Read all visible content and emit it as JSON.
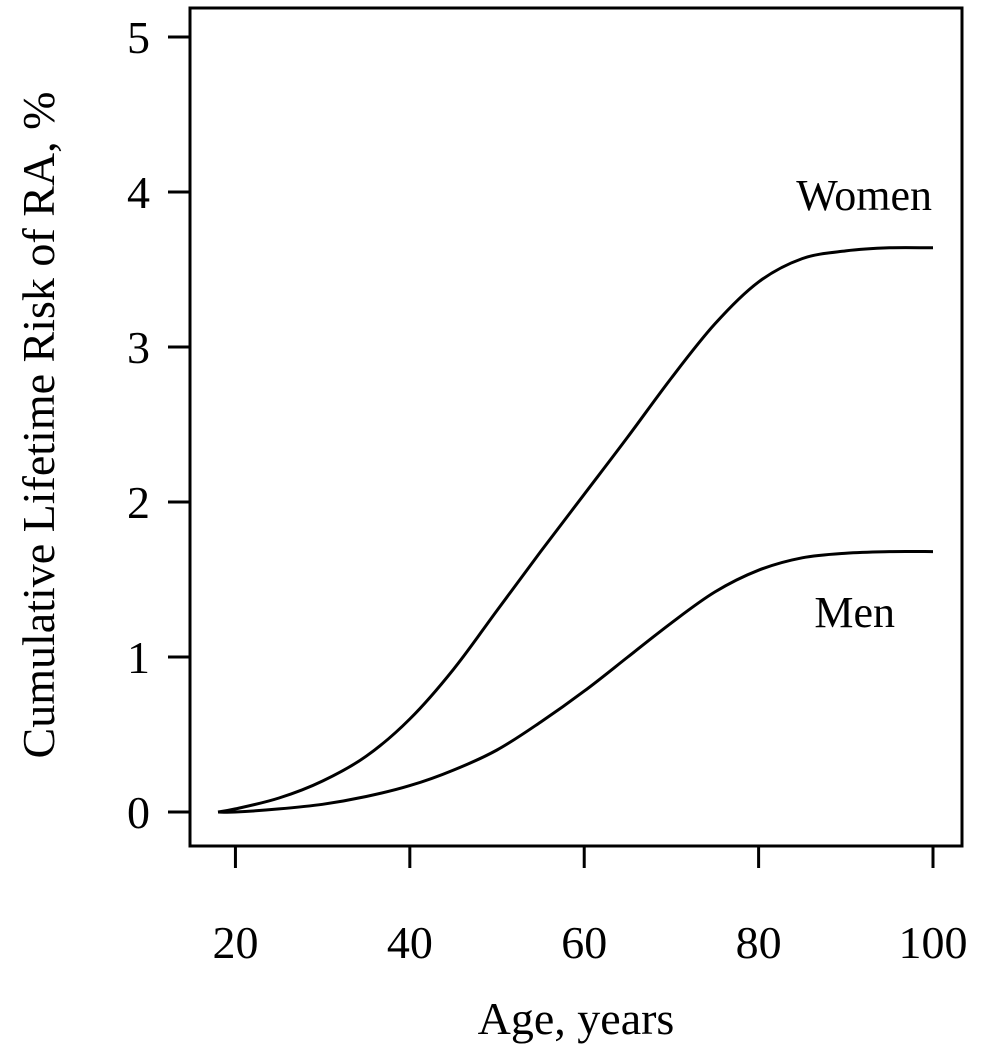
{
  "chart_data": {
    "type": "line",
    "title": "",
    "xlabel": "Age, years",
    "ylabel": "Cumulative Lifetime Risk of RA, %",
    "xlim": [
      18,
      100
    ],
    "ylim": [
      0,
      5
    ],
    "xticks": [
      20,
      40,
      60,
      80,
      100
    ],
    "yticks": [
      0,
      1,
      2,
      3,
      4,
      5
    ],
    "grid": false,
    "legend": "none",
    "x": [
      18,
      20,
      25,
      30,
      35,
      40,
      45,
      50,
      55,
      60,
      65,
      70,
      75,
      80,
      85,
      90,
      95,
      100
    ],
    "series": [
      {
        "name": "Women",
        "values": [
          0.0,
          0.02,
          0.09,
          0.2,
          0.36,
          0.6,
          0.92,
          1.3,
          1.68,
          2.05,
          2.42,
          2.8,
          3.15,
          3.42,
          3.57,
          3.62,
          3.64,
          3.64
        ]
      },
      {
        "name": "Men",
        "values": [
          0.0,
          0.0,
          0.02,
          0.05,
          0.1,
          0.17,
          0.27,
          0.4,
          0.58,
          0.78,
          1.0,
          1.22,
          1.42,
          1.56,
          1.64,
          1.67,
          1.68,
          1.68
        ]
      }
    ],
    "colors": {
      "line": "#000000",
      "background": "#ffffff"
    }
  }
}
